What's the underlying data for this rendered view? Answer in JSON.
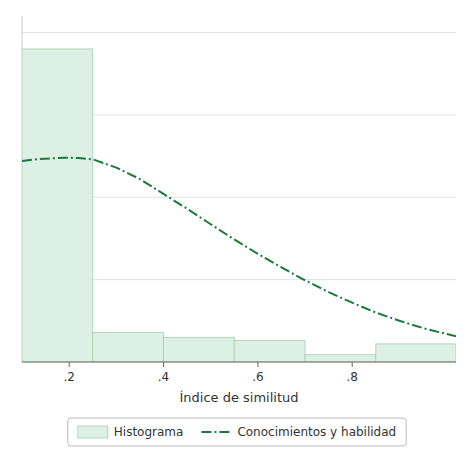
{
  "chart_data": {
    "type": "histogram",
    "xlabel": "Índice de similitud",
    "xlim": [
      0.1,
      1.02
    ],
    "ylim": [
      0,
      10.5
    ],
    "xticks": [
      {
        "value": 0.2,
        "label": ".2"
      },
      {
        "value": 0.4,
        "label": ".4"
      },
      {
        "value": 0.6,
        "label": ".6"
      },
      {
        "value": 0.8,
        "label": ".8"
      }
    ],
    "yticks": [
      0,
      2.5,
      5,
      7.5,
      10
    ],
    "tick_labels": "x",
    "grid": true,
    "legend": "bottom",
    "series": [
      {
        "name": "Histograma",
        "type": "histogram",
        "color": "#ddf0e5",
        "bins": [
          0.1,
          0.25,
          0.4,
          0.55,
          0.7,
          0.85,
          1.02
        ],
        "values": [
          9.5,
          0.9,
          0.75,
          0.65,
          0.22,
          0.55
        ]
      },
      {
        "name": "Conocimientos y habilidad",
        "type": "line",
        "color": "#1a7a3c",
        "line_style": "dashdot",
        "x": [
          0.1,
          0.13,
          0.16,
          0.19,
          0.22,
          0.25,
          0.3,
          0.35,
          0.4,
          0.45,
          0.5,
          0.55,
          0.6,
          0.65,
          0.7,
          0.75,
          0.8,
          0.85,
          0.9,
          0.95,
          1.0,
          1.02
        ],
        "values": [
          6.1,
          6.15,
          6.18,
          6.2,
          6.19,
          6.15,
          5.9,
          5.55,
          5.1,
          4.65,
          4.18,
          3.72,
          3.28,
          2.87,
          2.48,
          2.12,
          1.8,
          1.5,
          1.25,
          1.03,
          0.85,
          0.78
        ]
      }
    ]
  }
}
